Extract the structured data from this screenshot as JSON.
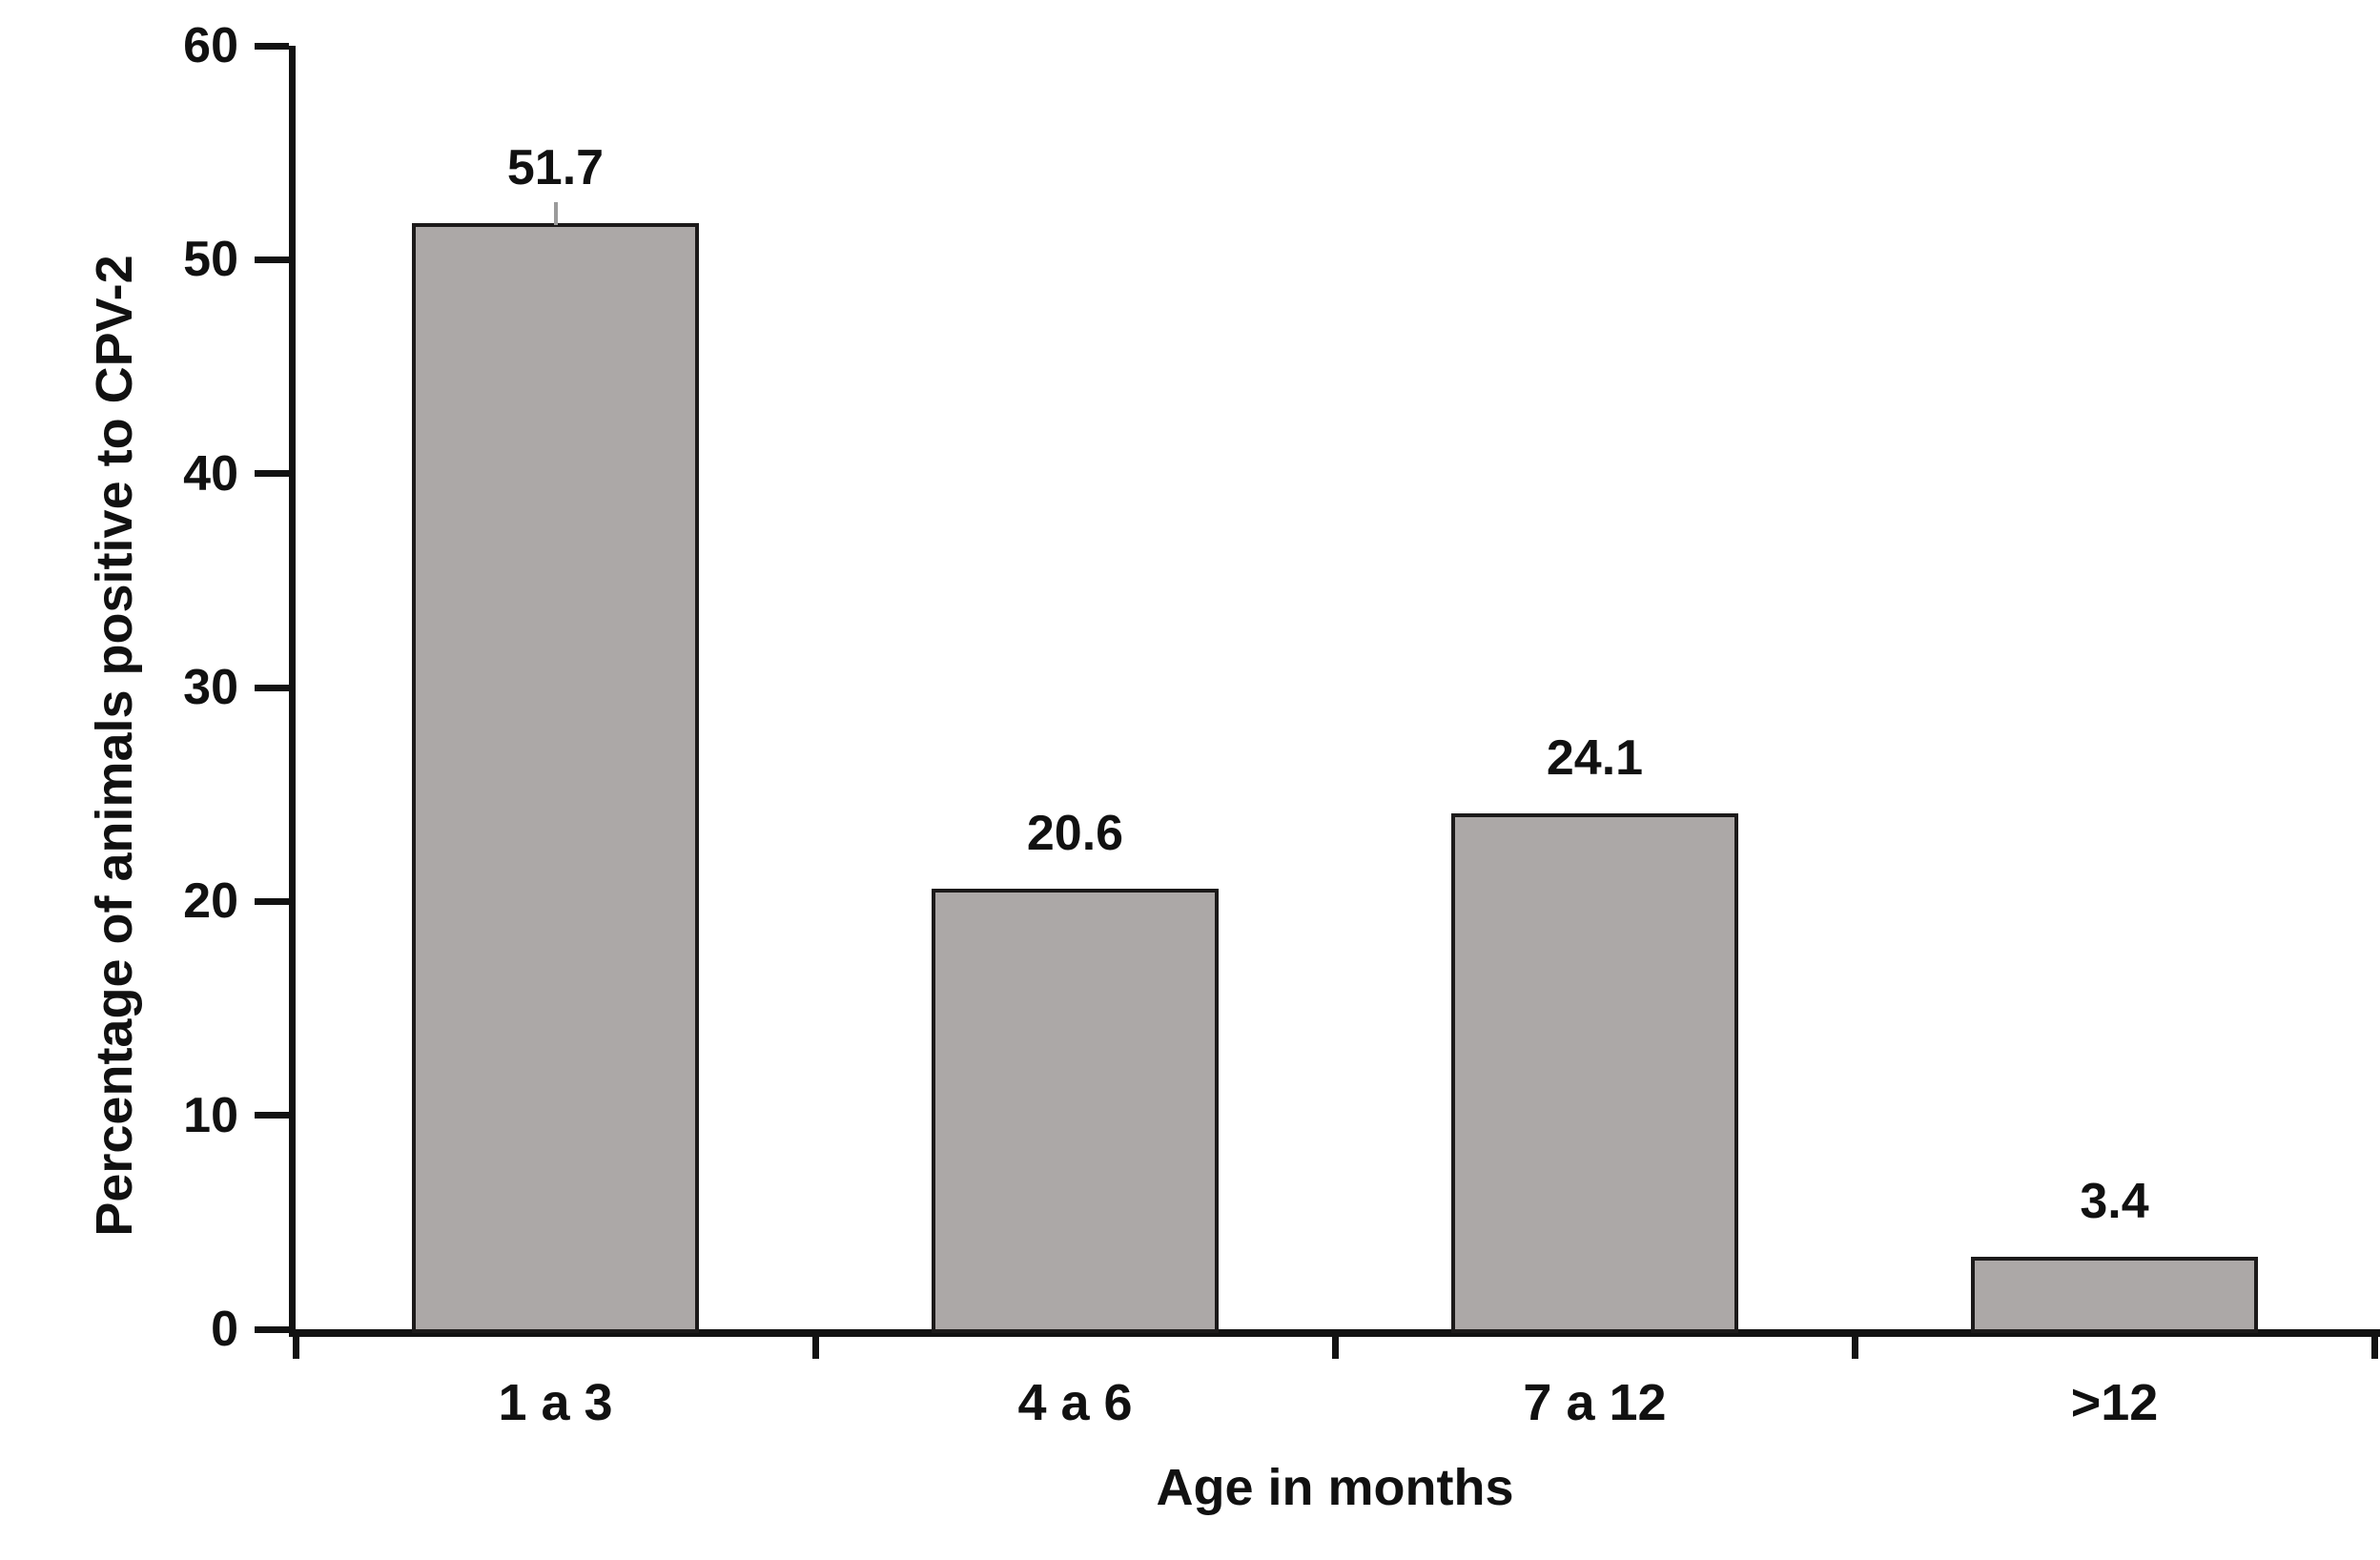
{
  "chart_data": {
    "type": "bar",
    "title": "",
    "categories": [
      "1 a 3",
      "4 a 6",
      "7 a 12",
      ">12"
    ],
    "values": [
      51.7,
      20.6,
      24.1,
      3.4
    ],
    "value_labels": [
      "51.7",
      "20.6",
      "24.1",
      "3.4"
    ],
    "xlabel": "Age in months",
    "ylabel": "Percentage of animals positive to CPV-2",
    "ylim": [
      0,
      60
    ],
    "yticks": [
      0,
      10,
      20,
      30,
      40,
      50,
      60
    ],
    "grid": false,
    "legend": "none",
    "bar_fill_color": "#ACA8A7",
    "bar_border_color": "#1C1A1A",
    "axis_color": "#121212",
    "text_color": "#111111",
    "error_tick": {
      "bar_index": 0,
      "color": "#9B9B9B"
    }
  }
}
